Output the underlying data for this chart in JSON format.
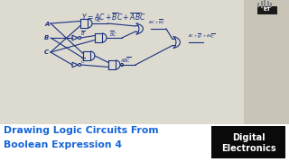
{
  "whiteboard_color": "#c8c5b8",
  "whiteboard_inner": "#dddbd0",
  "bottom_bg": "#ffffff",
  "title_line1": "Drawing Logic Circuits From",
  "title_line2": "Boolean Expression 4",
  "title_color": "#1565d8",
  "badge_bg": "#0a0a0a",
  "badge_line1": "Digital",
  "badge_line2": "Electronics",
  "badge_color": "#ffffff",
  "dc": "#1a3080",
  "gray_border": "#999999",
  "icon_gray": "#888888"
}
